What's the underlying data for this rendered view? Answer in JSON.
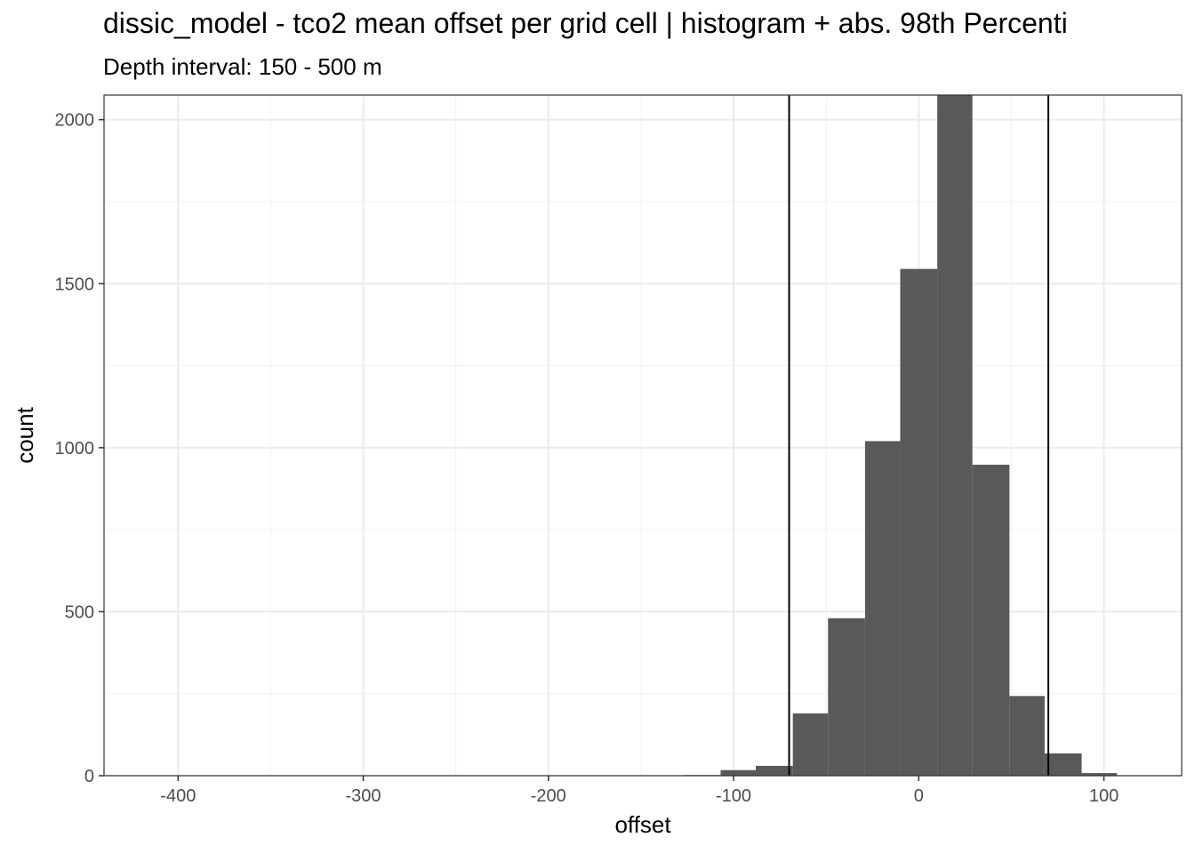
{
  "title": "dissic_model  -  tco2 mean offset per grid cell | histogram + abs. 98th Percenti",
  "subtitle": "Depth interval: 150 - 500 m",
  "colors": {
    "bar": "#595959",
    "grid_major": "#ebebeb",
    "grid_minor": "#f2f2f2",
    "panel_border": "#333333",
    "vline": "#000000"
  },
  "chart_data": {
    "type": "bar",
    "title": "dissic_model  -  tco2 mean offset per grid cell | histogram + abs. 98th Percenti",
    "subtitle": "Depth interval: 150 - 500 m",
    "xlabel": "offset",
    "ylabel": "count",
    "xlim": [
      -440,
      142
    ],
    "ylim": [
      0,
      2075
    ],
    "x_ticks": [
      -400,
      -300,
      -200,
      -100,
      0,
      100
    ],
    "x_tick_labels": [
      "-400",
      "-300",
      "-200",
      "-100",
      "0",
      "100"
    ],
    "y_ticks": [
      0,
      500,
      1000,
      1500,
      2000
    ],
    "y_tick_labels": [
      "0",
      "500",
      "1000",
      "1500",
      "2000"
    ],
    "bins": [
      {
        "x0": -127,
        "x1": -107,
        "count": 2
      },
      {
        "x0": -107,
        "x1": -88,
        "count": 17
      },
      {
        "x0": -88,
        "x1": -68,
        "count": 30
      },
      {
        "x0": -68,
        "x1": -49,
        "count": 190
      },
      {
        "x0": -49,
        "x1": -29,
        "count": 480
      },
      {
        "x0": -29,
        "x1": -10,
        "count": 1020
      },
      {
        "x0": -10,
        "x1": 10,
        "count": 1545
      },
      {
        "x0": 10,
        "x1": 29,
        "count": 2080
      },
      {
        "x0": 29,
        "x1": 49,
        "count": 948
      },
      {
        "x0": 49,
        "x1": 68,
        "count": 243
      },
      {
        "x0": 68,
        "x1": 88,
        "count": 68
      },
      {
        "x0": 88,
        "x1": 107,
        "count": 8
      }
    ],
    "percentile_lines": [
      -70,
      70
    ],
    "grid": true
  }
}
